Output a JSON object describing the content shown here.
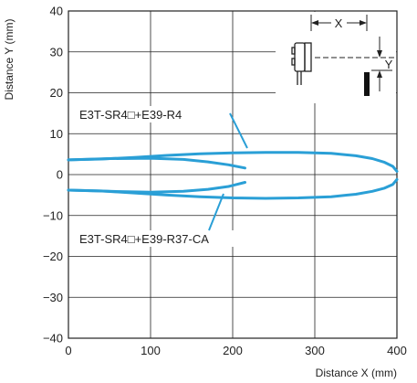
{
  "chart_data": {
    "type": "line",
    "xlabel": "Distance X (mm)",
    "ylabel": "Distance Y (mm)",
    "xlim": [
      0,
      400
    ],
    "ylim": [
      -40,
      40
    ],
    "grid": true,
    "xticks": [
      0,
      100,
      200,
      300,
      400
    ],
    "yticks": [
      40,
      30,
      20,
      10,
      0,
      -10,
      -20,
      -30,
      -40
    ],
    "ytick_labels": [
      "40",
      "30",
      "20",
      "10",
      "0",
      "−10",
      "−20",
      "−30",
      "−40"
    ],
    "series_color": "#2a9fd6",
    "series": [
      {
        "name": "E3T-SR4□+E39-R4",
        "upper": {
          "x": [
            0,
            40,
            80,
            120,
            160,
            200,
            240,
            280,
            320,
            350,
            370,
            385,
            395,
            400
          ],
          "y": [
            3.6,
            3.8,
            4.2,
            4.7,
            5.1,
            5.3,
            5.4,
            5.4,
            5.2,
            4.6,
            3.9,
            3.0,
            2.0,
            0.8
          ]
        },
        "lower": {
          "x": [
            0,
            40,
            80,
            120,
            160,
            200,
            240,
            280,
            320,
            350,
            370,
            385,
            395,
            400
          ],
          "y": [
            -3.8,
            -4.0,
            -4.5,
            -5.0,
            -5.4,
            -5.7,
            -5.8,
            -5.7,
            -5.4,
            -4.8,
            -4.1,
            -3.3,
            -2.4,
            -1.2
          ]
        }
      },
      {
        "name": "E3T-SR4□+E39-R37-CA",
        "upper": {
          "x": [
            0,
            50,
            100,
            140,
            170,
            195,
            215
          ],
          "y": [
            3.6,
            3.9,
            4.0,
            3.7,
            3.1,
            2.4,
            1.6
          ]
        },
        "lower": {
          "x": [
            0,
            50,
            100,
            140,
            170,
            195,
            215
          ],
          "y": [
            -3.8,
            -4.1,
            -4.3,
            -4.1,
            -3.6,
            -2.9,
            -1.9
          ]
        }
      }
    ],
    "annotations": {
      "label_a": "E3T-SR4□+E39-R4",
      "label_b": "E3T-SR4□+E39-R37-CA"
    },
    "inset": {
      "x_label": "X",
      "y_label": "Y"
    }
  }
}
